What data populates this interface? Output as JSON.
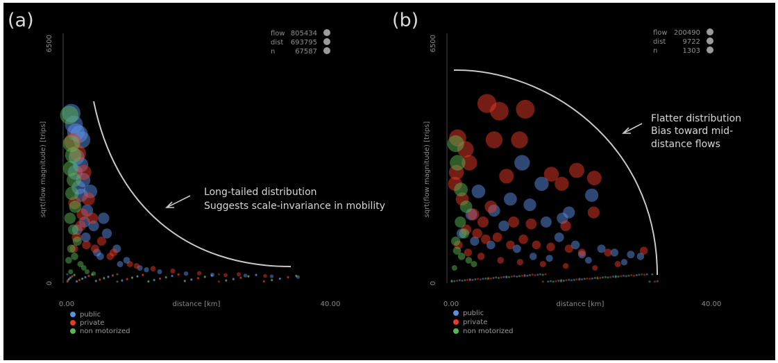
{
  "colors": {
    "public": "#5b8fe6",
    "private": "#e8392a",
    "non_motorized": "#5ab552",
    "background": "#000000",
    "curve": "#c9c9c9"
  },
  "chart_data": [
    {
      "panel": "(a)",
      "type": "scatter",
      "xlabel": "distance [km]",
      "ylabel": "sqrt(flow magnitude) [trips]",
      "xlim": [
        0,
        40
      ],
      "ylim": [
        0,
        6500
      ],
      "x_ticks": [
        "0.00",
        "40.00"
      ],
      "y_ticks": [
        "0",
        "6500"
      ],
      "stats": [
        {
          "label": "flow",
          "value": "805434"
        },
        {
          "label": "dist",
          "value": "693795"
        },
        {
          "label": "n",
          "value": "67587"
        }
      ],
      "legend": [
        "public",
        "private",
        "non motorized"
      ],
      "annotation": [
        "Long-tailed distribution",
        "Suggests scale-invariance in mobility"
      ],
      "series": [
        {
          "name": "public",
          "points": [
            [
              0.6,
              4450
            ],
            [
              1.0,
              4150
            ],
            [
              1.3,
              3950
            ],
            [
              1.8,
              3900
            ],
            [
              2.2,
              3750
            ],
            [
              1.4,
              3300
            ],
            [
              2.0,
              3100
            ],
            [
              1.2,
              2900
            ],
            [
              2.4,
              2700
            ],
            [
              1.7,
              2500
            ],
            [
              2.1,
              2300
            ],
            [
              3.5,
              2400
            ],
            [
              5.5,
              1700
            ],
            [
              3.0,
              1900
            ],
            [
              2.6,
              1600
            ],
            [
              4.0,
              1500
            ],
            [
              6.0,
              1300
            ],
            [
              7.5,
              900
            ],
            [
              9.0,
              600
            ],
            [
              11.0,
              400
            ],
            [
              14.0,
              300
            ],
            [
              18.0,
              250
            ],
            [
              22.0,
              220
            ],
            [
              27.0,
              200
            ],
            [
              31.0,
              180
            ],
            [
              35.0,
              160
            ],
            [
              1.5,
              1400
            ],
            [
              2.8,
              1200
            ],
            [
              4.5,
              800
            ],
            [
              5.0,
              700
            ],
            [
              8.0,
              500
            ],
            [
              12.0,
              350
            ]
          ]
        },
        {
          "name": "private",
          "points": [
            [
              0.8,
              3700
            ],
            [
              1.6,
              3400
            ],
            [
              2.5,
              2900
            ],
            [
              1.1,
              2100
            ],
            [
              2.3,
              1800
            ],
            [
              3.8,
              1700
            ],
            [
              1.4,
              1200
            ],
            [
              2.9,
              1000
            ],
            [
              4.2,
              900
            ],
            [
              6.5,
              700
            ],
            [
              9.5,
              500
            ],
            [
              13.0,
              380
            ],
            [
              20.0,
              260
            ],
            [
              26.0,
              230
            ],
            [
              3.2,
              2200
            ],
            [
              5.2,
              1100
            ],
            [
              7.0,
              800
            ],
            [
              10.5,
              450
            ],
            [
              16.0,
              320
            ],
            [
              24.0,
              210
            ],
            [
              30.0,
              190
            ],
            [
              2.0,
              1500
            ],
            [
              1.0,
              900
            ]
          ]
        },
        {
          "name": "non motorized",
          "points": [
            [
              0.3,
              4400
            ],
            [
              0.6,
              3650
            ],
            [
              0.9,
              3350
            ],
            [
              0.5,
              3000
            ],
            [
              1.0,
              2700
            ],
            [
              0.7,
              2350
            ],
            [
              1.2,
              2000
            ],
            [
              0.4,
              1700
            ],
            [
              0.9,
              1400
            ],
            [
              1.5,
              1100
            ],
            [
              0.6,
              900
            ],
            [
              1.1,
              700
            ],
            [
              2.0,
              500
            ],
            [
              2.5,
              400
            ],
            [
              3.0,
              300
            ],
            [
              4.0,
              250
            ],
            [
              0.2,
              600
            ],
            [
              0.5,
              300
            ]
          ]
        }
      ]
    },
    {
      "panel": "(b)",
      "type": "scatter",
      "xlabel": "distance [km]",
      "ylabel": "sqrt(flow magnitude) [trips]",
      "xlim": [
        0,
        40
      ],
      "ylim": [
        0,
        6500
      ],
      "x_ticks": [
        "0.00",
        "40.00"
      ],
      "y_ticks": [
        "0",
        "6500"
      ],
      "stats": [
        {
          "label": "flow",
          "value": "200490"
        },
        {
          "label": "dist",
          "value": "9722"
        },
        {
          "label": "n",
          "value": "1303"
        }
      ],
      "legend": [
        "public",
        "private",
        "non motorized"
      ],
      "annotation": [
        "Flatter distribution",
        "Bias toward mid-",
        "distance flows"
      ],
      "series": [
        {
          "name": "public",
          "points": [
            [
              10.8,
              3150
            ],
            [
              13.8,
              2600
            ],
            [
              4.1,
              2400
            ],
            [
              9.0,
              2200
            ],
            [
              12.0,
              2050
            ],
            [
              6.5,
              1900
            ],
            [
              3.0,
              1800
            ],
            [
              18.0,
              1850
            ],
            [
              21.5,
              2300
            ],
            [
              8.0,
              1500
            ],
            [
              14.5,
              1600
            ],
            [
              16.5,
              1200
            ],
            [
              19.0,
              1000
            ],
            [
              23.0,
              900
            ],
            [
              25.0,
              800
            ],
            [
              27.5,
              750
            ],
            [
              29.0,
              700
            ],
            [
              6.0,
              1000
            ],
            [
              10.0,
              900
            ],
            [
              3.5,
              1100
            ],
            [
              12.5,
              700
            ],
            [
              15.0,
              650
            ],
            [
              21.0,
              600
            ],
            [
              26.5,
              550
            ],
            [
              1.5,
              1300
            ],
            [
              17.0,
              1700
            ],
            [
              20.0,
              750
            ]
          ]
        },
        {
          "name": "private",
          "points": [
            [
              5.4,
              4700
            ],
            [
              7.3,
              4500
            ],
            [
              11.3,
              4550
            ],
            [
              0.9,
              3800
            ],
            [
              2.1,
              3500
            ],
            [
              6.5,
              3750
            ],
            [
              10.4,
              3750
            ],
            [
              0.7,
              2900
            ],
            [
              2.7,
              3150
            ],
            [
              8.4,
              2800
            ],
            [
              15.3,
              2850
            ],
            [
              19.2,
              2950
            ],
            [
              16.9,
              2600
            ],
            [
              21.9,
              2750
            ],
            [
              0.5,
              2600
            ],
            [
              1.6,
              2200
            ],
            [
              3.3,
              1800
            ],
            [
              4.8,
              1600
            ],
            [
              6.0,
              2000
            ],
            [
              9.5,
              1600
            ],
            [
              12.2,
              1550
            ],
            [
              17.5,
              1500
            ],
            [
              21.8,
              1850
            ],
            [
              2.2,
              1400
            ],
            [
              3.9,
              1300
            ],
            [
              5.2,
              1150
            ],
            [
              7.0,
              1200
            ],
            [
              9.0,
              1000
            ],
            [
              11.0,
              1150
            ],
            [
              13.0,
              1000
            ],
            [
              15.2,
              950
            ],
            [
              18.0,
              900
            ],
            [
              20.0,
              800
            ],
            [
              24.0,
              800
            ],
            [
              29.5,
              850
            ],
            [
              1.0,
              1000
            ],
            [
              2.5,
              800
            ],
            [
              4.5,
              700
            ],
            [
              7.5,
              600
            ],
            [
              10.5,
              550
            ],
            [
              14.0,
              500
            ],
            [
              17.5,
              450
            ],
            [
              22.0,
              400
            ],
            [
              25.5,
              500
            ]
          ]
        },
        {
          "name": "non motorized",
          "points": [
            [
              0.6,
              3650
            ],
            [
              0.9,
              3150
            ],
            [
              1.4,
              2450
            ],
            [
              2.2,
              2000
            ],
            [
              1.3,
              1600
            ],
            [
              1.9,
              1300
            ],
            [
              0.6,
              1100
            ],
            [
              0.8,
              850
            ],
            [
              1.5,
              700
            ],
            [
              2.6,
              600
            ],
            [
              3.4,
              500
            ],
            [
              0.4,
              400
            ]
          ]
        }
      ]
    }
  ]
}
